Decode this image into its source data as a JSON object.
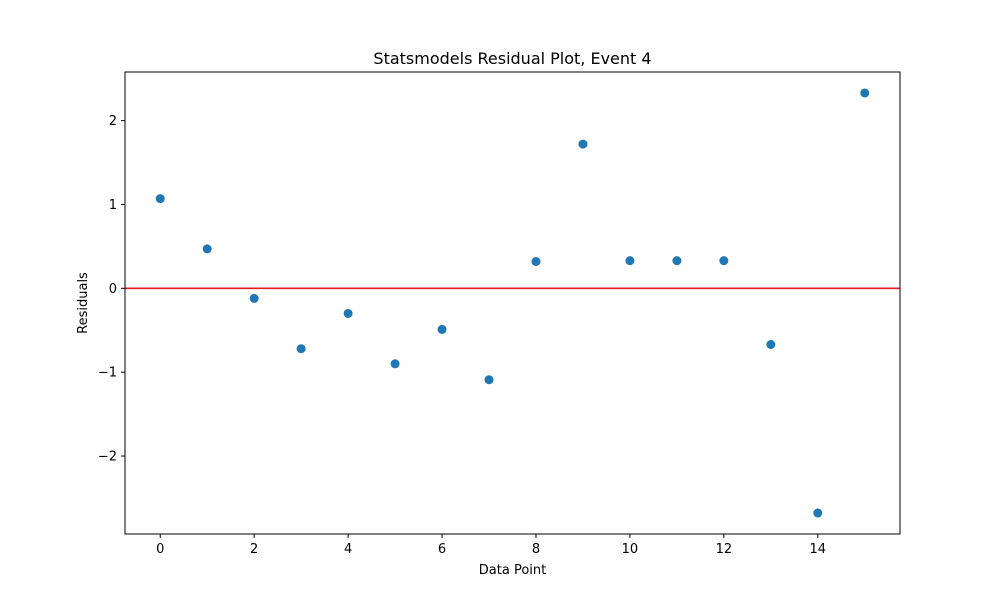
{
  "chart_data": {
    "type": "scatter",
    "title": "Statsmodels Residual Plot, Event 4",
    "xlabel": "Data Point",
    "ylabel": "Residuals",
    "xlim": [
      -0.75,
      15.75
    ],
    "ylim": [
      -2.93,
      2.58
    ],
    "x_ticks": [
      0,
      2,
      4,
      6,
      8,
      10,
      12,
      14
    ],
    "x_tick_labels": [
      "0",
      "2",
      "4",
      "6",
      "8",
      "10",
      "12",
      "14"
    ],
    "y_ticks": [
      -2,
      -1,
      0,
      1,
      2
    ],
    "y_tick_labels": [
      "−2",
      "−1",
      "0",
      "1",
      "2"
    ],
    "grid": false,
    "reference_line": {
      "y": 0,
      "color": "#e41a1c"
    },
    "point_color": "#1f77b4",
    "x": [
      0,
      1,
      2,
      3,
      4,
      5,
      6,
      7,
      8,
      9,
      10,
      11,
      12,
      13,
      14,
      15
    ],
    "y": [
      1.07,
      0.47,
      -0.12,
      -0.72,
      -0.3,
      -0.9,
      -0.49,
      -1.09,
      0.32,
      1.72,
      0.33,
      0.33,
      0.33,
      -0.67,
      -2.68,
      2.33
    ]
  }
}
